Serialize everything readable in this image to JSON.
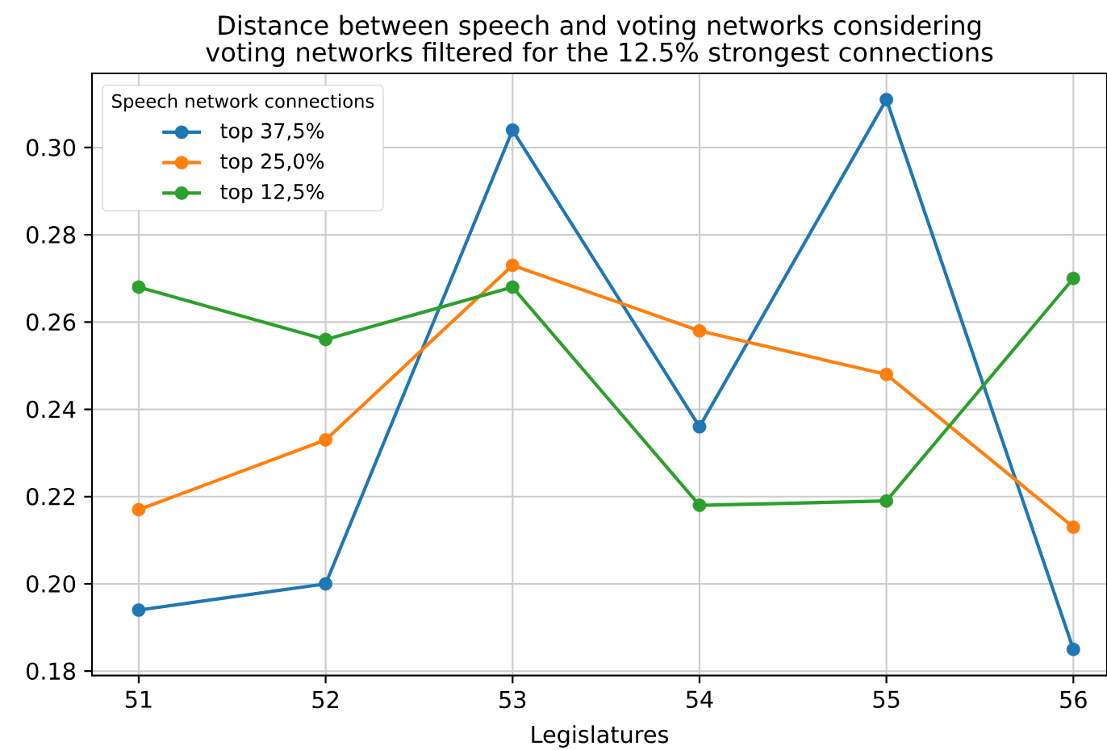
{
  "chart_data": {
    "type": "line",
    "title": "Distance between speech and voting networks considering voting networks filtered for the 12.5% strongest connections",
    "xlabel": "Legislatures",
    "legend_title": "Speech network connections",
    "x": [
      51,
      52,
      53,
      54,
      55,
      56
    ],
    "series": [
      {
        "name": "top 37,5%",
        "color": "#1f77b4",
        "values": [
          0.194,
          0.2,
          0.304,
          0.236,
          0.311,
          0.185
        ]
      },
      {
        "name": "top 25,0%",
        "color": "#ff7f0e",
        "values": [
          0.217,
          0.233,
          0.273,
          0.258,
          0.248,
          0.213
        ]
      },
      {
        "name": "top 12,5%",
        "color": "#2ca02c",
        "values": [
          0.268,
          0.256,
          0.268,
          0.218,
          0.219,
          0.27
        ]
      }
    ],
    "xlim": [
      50.75,
      56.18
    ],
    "ylim": [
      0.179,
      0.317
    ],
    "xticks": [
      51,
      52,
      53,
      54,
      55,
      56
    ],
    "yticks": [
      {
        "value": 0.18,
        "label": "0.18"
      },
      {
        "value": 0.2,
        "label": "0.20"
      },
      {
        "value": 0.22,
        "label": "0.22"
      },
      {
        "value": 0.24,
        "label": "0.24"
      },
      {
        "value": 0.26,
        "label": "0.26"
      },
      {
        "value": 0.28,
        "label": "0.28"
      },
      {
        "value": 0.3,
        "label": "0.30"
      }
    ],
    "grid": true,
    "legend": "top left",
    "marker": "circle",
    "line_style": "solid"
  }
}
